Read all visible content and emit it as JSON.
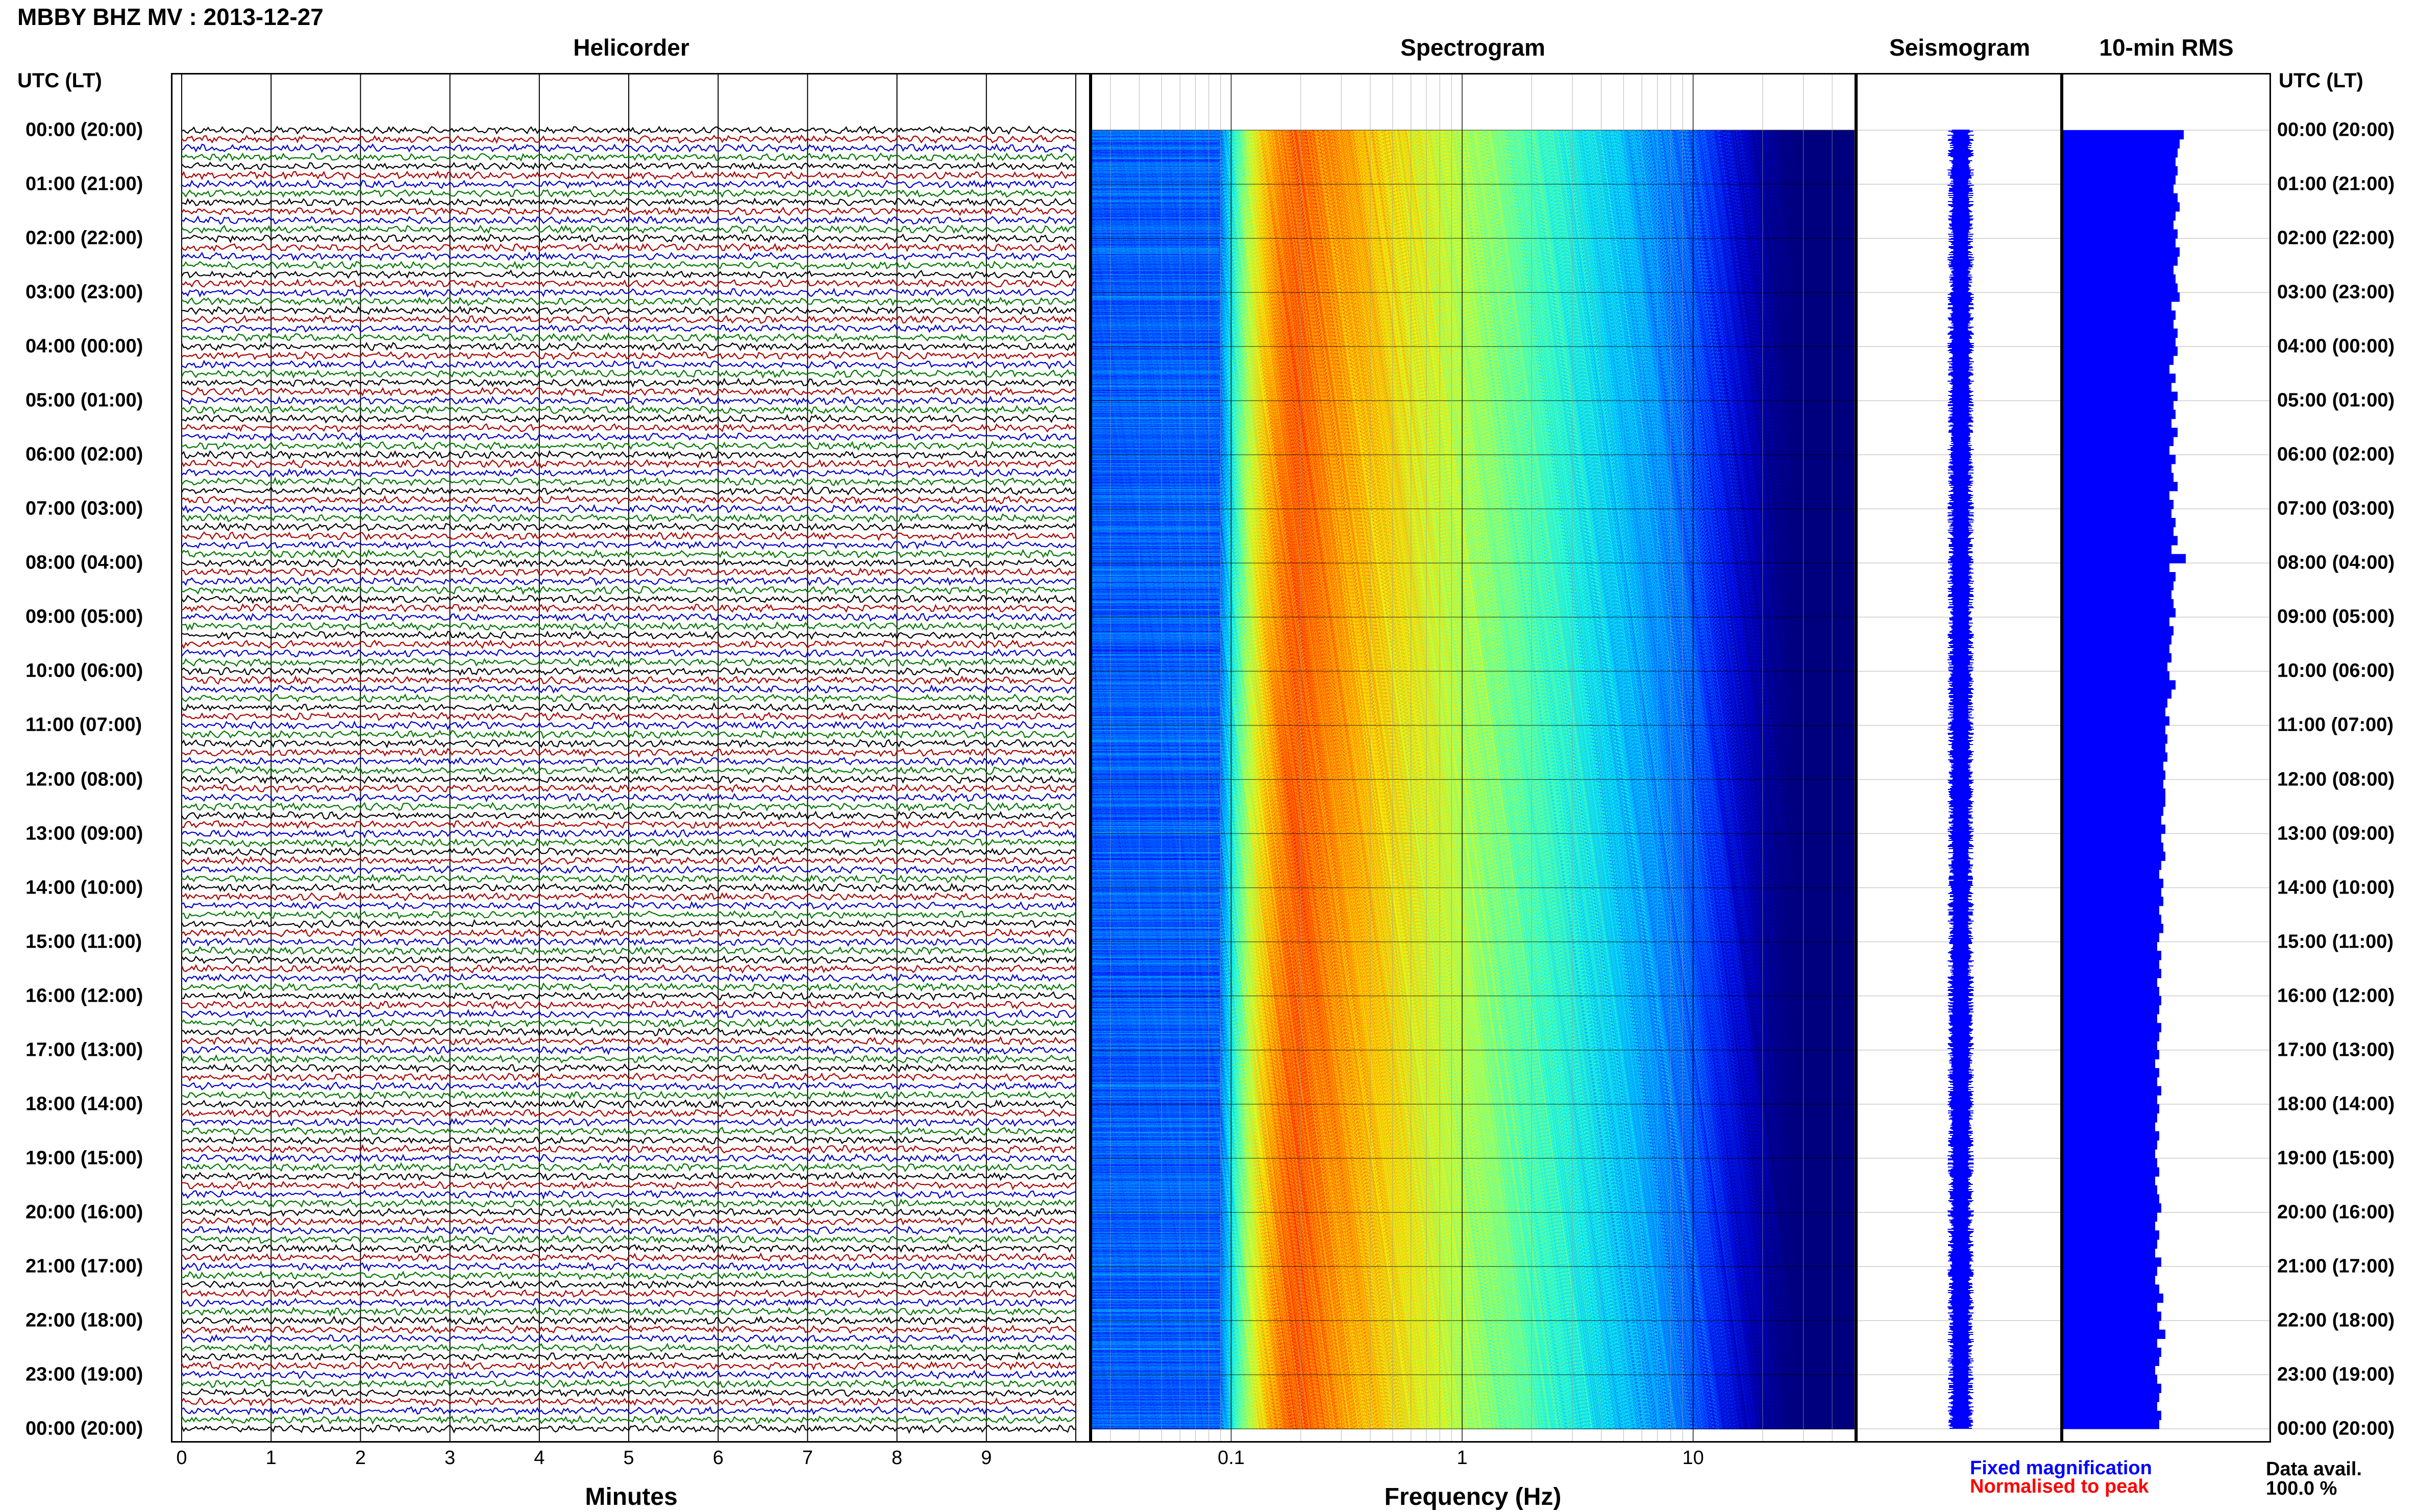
{
  "title": "MBBY BHZ MV : 2013-12-27",
  "panels": {
    "helicorder": "Helicorder",
    "spectrogram": "Spectrogram",
    "seismogram": "Seismogram",
    "rms": "10-min RMS"
  },
  "utc_header": "UTC (LT)",
  "time_labels": [
    "00:00 (20:00)",
    "01:00 (21:00)",
    "02:00 (22:00)",
    "03:00 (23:00)",
    "04:00 (00:00)",
    "05:00 (01:00)",
    "06:00 (02:00)",
    "07:00 (03:00)",
    "08:00 (04:00)",
    "09:00 (05:00)",
    "10:00 (06:00)",
    "11:00 (07:00)",
    "12:00 (08:00)",
    "13:00 (09:00)",
    "14:00 (10:00)",
    "15:00 (11:00)",
    "16:00 (12:00)",
    "17:00 (13:00)",
    "18:00 (14:00)",
    "19:00 (15:00)",
    "20:00 (16:00)",
    "21:00 (17:00)",
    "22:00 (18:00)",
    "23:00 (19:00)",
    "00:00 (20:00)"
  ],
  "minutes_axis": {
    "label": "Minutes",
    "ticks": [
      "0",
      "1",
      "2",
      "3",
      "4",
      "5",
      "6",
      "7",
      "8",
      "9"
    ]
  },
  "frequency_axis": {
    "label": "Frequency (Hz)",
    "ticks": [
      "0.1",
      "1",
      "10"
    ]
  },
  "legend": {
    "fixed": "Fixed magnification",
    "normalised": "Normalised to peak"
  },
  "data_avail": {
    "label": "Data avail.",
    "value": "100.0 %"
  },
  "colors": {
    "trace_cycle": [
      "#000000",
      "#aa0000",
      "#0000cc",
      "#007700"
    ],
    "seismogram": "#0000ff",
    "rms_bars": "#0000ff",
    "legend_fixed": "#0000ff",
    "legend_normalised": "#ff0000"
  },
  "chart_data": [
    {
      "type": "line",
      "name": "helicorder",
      "title": "Helicorder",
      "xlabel": "Minutes",
      "xlim": [
        0,
        10
      ],
      "rows_per_hour": 6,
      "hours": 24,
      "x_ticks": [
        0,
        1,
        2,
        3,
        4,
        5,
        6,
        7,
        8,
        9
      ]
    },
    {
      "type": "heatmap",
      "name": "spectrogram",
      "title": "Spectrogram",
      "xlabel": "Frequency (Hz)",
      "x_scale": "log",
      "xlim": [
        0.025,
        50
      ],
      "x_ticks": [
        0.1,
        1,
        10
      ],
      "peak_frequency_hz": 0.2,
      "hours": 24
    },
    {
      "type": "line",
      "name": "seismogram",
      "title": "Seismogram",
      "hours": 24
    },
    {
      "type": "bar",
      "name": "rms",
      "title": "10-min RMS",
      "orientation": "horizontal",
      "bins": 144,
      "values": [
        0.59,
        0.57,
        0.56,
        0.55,
        0.56,
        0.55,
        0.54,
        0.56,
        0.57,
        0.55,
        0.54,
        0.56,
        0.55,
        0.57,
        0.56,
        0.54,
        0.55,
        0.56,
        0.57,
        0.53,
        0.55,
        0.54,
        0.56,
        0.55,
        0.56,
        0.54,
        0.52,
        0.55,
        0.53,
        0.56,
        0.54,
        0.55,
        0.53,
        0.56,
        0.54,
        0.52,
        0.55,
        0.53,
        0.54,
        0.56,
        0.52,
        0.54,
        0.53,
        0.55,
        0.54,
        0.56,
        0.53,
        0.6,
        0.52,
        0.55,
        0.54,
        0.53,
        0.54,
        0.55,
        0.52,
        0.54,
        0.53,
        0.52,
        0.53,
        0.51,
        0.52,
        0.55,
        0.53,
        0.51,
        0.5,
        0.52,
        0.5,
        0.51,
        0.5,
        0.51,
        0.49,
        0.5,
        0.49,
        0.5,
        0.5,
        0.49,
        0.48,
        0.5,
        0.48,
        0.49,
        0.5,
        0.48,
        0.47,
        0.49,
        0.48,
        0.49,
        0.47,
        0.48,
        0.49,
        0.47,
        0.46,
        0.48,
        0.47,
        0.48,
        0.46,
        0.47,
        0.48,
        0.47,
        0.46,
        0.48,
        0.47,
        0.46,
        0.47,
        0.45,
        0.47,
        0.46,
        0.48,
        0.46,
        0.47,
        0.46,
        0.45,
        0.47,
        0.46,
        0.45,
        0.46,
        0.47,
        0.45,
        0.46,
        0.47,
        0.48,
        0.46,
        0.45,
        0.47,
        0.46,
        0.45,
        0.48,
        0.46,
        0.45,
        0.47,
        0.49,
        0.46,
        0.48,
        0.47,
        0.5,
        0.46,
        0.48,
        0.47,
        0.45,
        0.46,
        0.48,
        0.47,
        0.46,
        0.48,
        0.47
      ],
      "xlim": [
        0,
        1
      ]
    }
  ]
}
